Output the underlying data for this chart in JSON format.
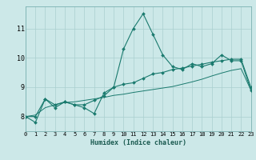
{
  "xlabel": "Humidex (Indice chaleur)",
  "bg_color": "#cce8e8",
  "grid_color": "#aacfcf",
  "line_color": "#1a7a6e",
  "xmin": 0,
  "xmax": 23,
  "ymin": 7.5,
  "ymax": 11.75,
  "yticks": [
    8,
    9,
    10,
    11
  ],
  "xticks": [
    0,
    1,
    2,
    3,
    4,
    5,
    6,
    7,
    8,
    9,
    10,
    11,
    12,
    13,
    14,
    15,
    16,
    17,
    18,
    19,
    20,
    21,
    22,
    23
  ],
  "x": [
    0,
    1,
    2,
    3,
    4,
    5,
    6,
    7,
    8,
    9,
    10,
    11,
    12,
    13,
    14,
    15,
    16,
    17,
    18,
    19,
    20,
    21,
    22,
    23
  ],
  "line1": [
    8.0,
    7.8,
    8.6,
    8.3,
    8.5,
    8.4,
    8.3,
    8.1,
    8.8,
    9.0,
    10.3,
    11.0,
    11.5,
    10.8,
    10.1,
    9.7,
    9.6,
    9.8,
    9.7,
    9.8,
    10.1,
    9.9,
    9.9,
    8.9
  ],
  "line2": [
    8.0,
    8.0,
    8.6,
    8.4,
    8.5,
    8.4,
    8.4,
    8.55,
    8.7,
    9.0,
    9.1,
    9.15,
    9.3,
    9.45,
    9.5,
    9.6,
    9.65,
    9.72,
    9.78,
    9.85,
    9.9,
    9.95,
    9.95,
    9.0
  ],
  "line3": [
    8.0,
    8.05,
    8.3,
    8.4,
    8.48,
    8.5,
    8.55,
    8.6,
    8.65,
    8.72,
    8.76,
    8.82,
    8.87,
    8.92,
    8.97,
    9.02,
    9.1,
    9.18,
    9.27,
    9.38,
    9.48,
    9.57,
    9.63,
    8.9
  ],
  "xlabel_fontsize": 6,
  "tick_fontsize": 5,
  "ylabel_fontsize": 6
}
